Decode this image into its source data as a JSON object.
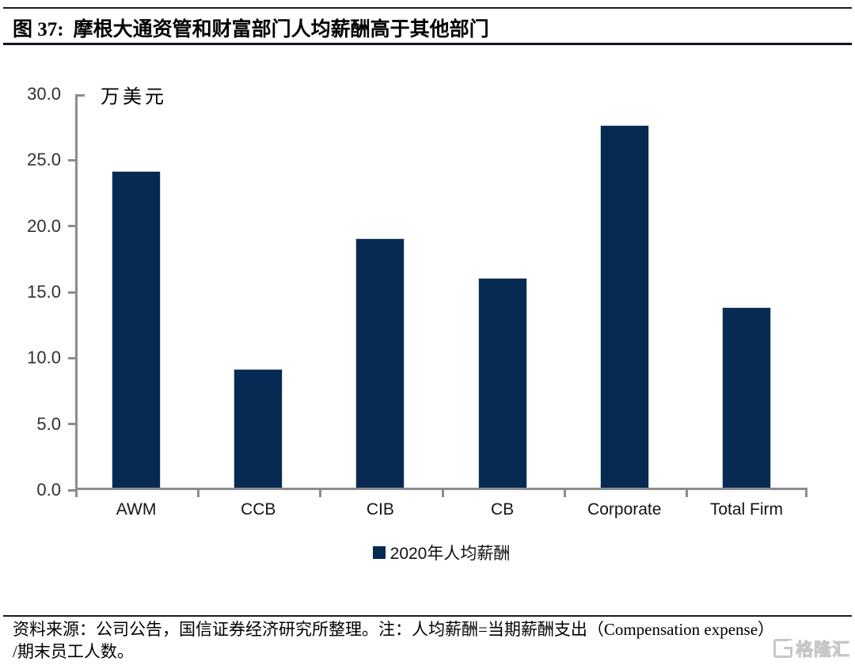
{
  "header": {
    "figure_label": "图 37:",
    "title": "摩根大通资管和财富部门人均薪酬高于其他部门"
  },
  "chart_data": {
    "type": "bar",
    "title": "摩根大通资管和财富部门人均薪酬高于其他部门",
    "unit_label": "万美元",
    "categories": [
      "AWM",
      "CCB",
      "CIB",
      "CB",
      "Corporate",
      "Total Firm"
    ],
    "values": [
      24.0,
      9.0,
      18.9,
      15.9,
      27.5,
      13.7
    ],
    "ylim": [
      0,
      30
    ],
    "ytick_step": 5,
    "ytick_decimals": 1,
    "grid": false,
    "bar_color": "#062a52",
    "axis_color": "#8c8c8c",
    "legend_position": "bottom-center",
    "legend": [
      {
        "label": "2020年人均薪酬",
        "color": "#062a52"
      }
    ]
  },
  "footer": {
    "line1": "资料来源：公司公告，国信证券经济研究所整理。注：人均薪酬=当期薪酬支出（Compensation expense）",
    "line2": "/期末员工人数。"
  },
  "watermark": {
    "glyph": "gelonghui-logo",
    "text": "格隆汇"
  }
}
